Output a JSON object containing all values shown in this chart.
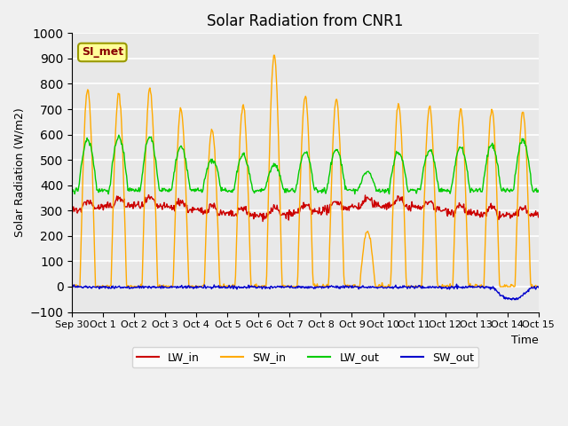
{
  "title": "Solar Radiation from CNR1",
  "xlabel": "Time",
  "ylabel": "Solar Radiation (W/m2)",
  "ylim": [
    -100,
    1000
  ],
  "annotation": "SI_met",
  "background_color": "#e8e8e8",
  "grid_color": "#ffffff",
  "colors": {
    "LW_in": "#cc0000",
    "SW_in": "#ffaa00",
    "LW_out": "#00cc00",
    "SW_out": "#0000cc"
  },
  "xtick_labels": [
    "Sep 30",
    "Oct 1",
    "Oct 2",
    "Oct 3",
    "Oct 4",
    "Oct 5",
    "Oct 6",
    "Oct 7",
    "Oct 8",
    "Oct 9",
    "Oct 10",
    "Oct 11",
    "Oct 12",
    "Oct 13",
    "Oct 14",
    "Oct 15"
  ],
  "days": 16,
  "points_per_day": 48,
  "sw_in_peaks": [
    780,
    760,
    780,
    700,
    620,
    720,
    910,
    750,
    740,
    220,
    720,
    710,
    700,
    700,
    690,
    0
  ],
  "lw_out_peaks": [
    580,
    590,
    590,
    550,
    500,
    520,
    480,
    530,
    540,
    450,
    530,
    540,
    550,
    560,
    580,
    0
  ],
  "lw_out_base": 380,
  "lw_in_base": 300
}
